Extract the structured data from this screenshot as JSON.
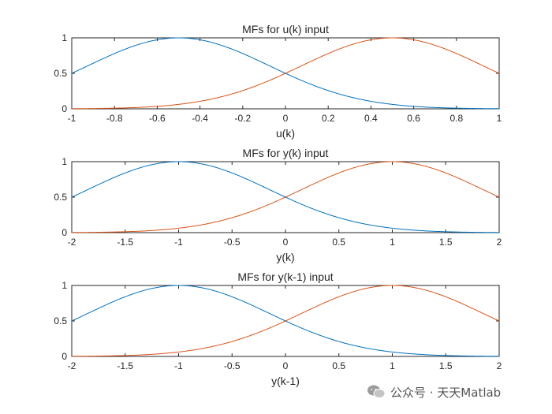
{
  "chart_data": [
    {
      "type": "line",
      "title": "MFs for u(k) input",
      "xlabel": "u(k)",
      "ylabel": "",
      "xlim": [
        -1,
        1
      ],
      "ylim": [
        0,
        1
      ],
      "xticks": [
        "-1",
        "-0.8",
        "-0.6",
        "-0.4",
        "-0.2",
        "0",
        "0.2",
        "0.4",
        "0.6",
        "0.8",
        "1"
      ],
      "yticks": [
        "0",
        "0.5",
        "1"
      ],
      "series": [
        {
          "shape": "gaussian",
          "center": -0.5,
          "sigma": 0.4247,
          "color": "#0072BD"
        },
        {
          "shape": "gaussian",
          "center": 0.5,
          "sigma": 0.4247,
          "color": "#D95319"
        }
      ]
    },
    {
      "type": "line",
      "title": "MFs for y(k) input",
      "xlabel": "y(k)",
      "ylabel": "",
      "xlim": [
        -2,
        2
      ],
      "ylim": [
        0,
        1
      ],
      "xticks": [
        "-2",
        "-1.5",
        "-1",
        "-0.5",
        "0",
        "0.5",
        "1",
        "1.5",
        "2"
      ],
      "yticks": [
        "0",
        "0.5",
        "1"
      ],
      "series": [
        {
          "shape": "gaussian",
          "center": -1,
          "sigma": 0.8493,
          "color": "#0072BD"
        },
        {
          "shape": "gaussian",
          "center": 1,
          "sigma": 0.8493,
          "color": "#D95319"
        }
      ]
    },
    {
      "type": "line",
      "title": "MFs for y(k-1) input",
      "xlabel": "y(k-1)",
      "ylabel": "",
      "xlim": [
        -2,
        2
      ],
      "ylim": [
        0,
        1
      ],
      "xticks": [
        "-2",
        "-1.5",
        "-1",
        "-0.5",
        "0",
        "0.5",
        "1",
        "1.5",
        "2"
      ],
      "yticks": [
        "0",
        "0.5",
        "1"
      ],
      "series": [
        {
          "shape": "gaussian",
          "center": -1,
          "sigma": 0.8493,
          "color": "#0072BD"
        },
        {
          "shape": "gaussian",
          "center": 1,
          "sigma": 0.8493,
          "color": "#D95319"
        }
      ]
    }
  ],
  "watermark": {
    "text": "公众号 · 天天Matlab",
    "icon": "wechat-icon"
  }
}
